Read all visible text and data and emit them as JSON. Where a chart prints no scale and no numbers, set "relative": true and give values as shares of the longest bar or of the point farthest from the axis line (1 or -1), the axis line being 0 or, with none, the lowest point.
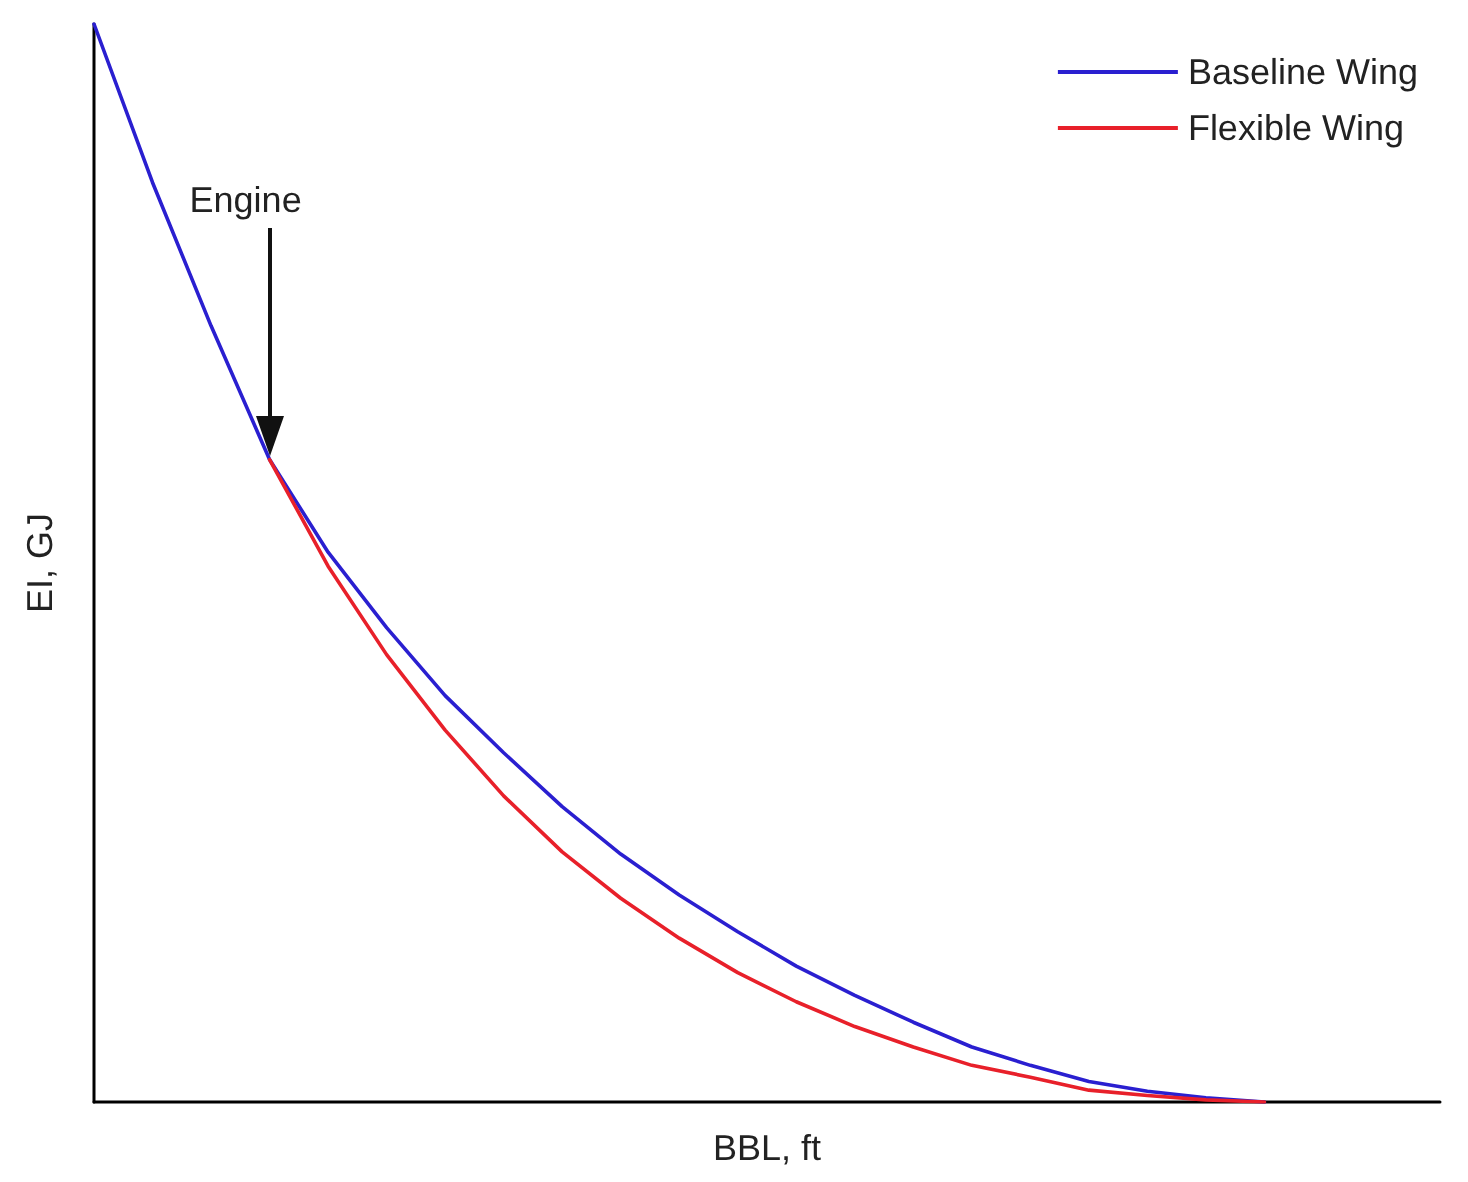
{
  "chart_data": {
    "type": "line",
    "relative": true,
    "xlabel": "BBL, ft",
    "ylabel": "EI, GJ",
    "categories": [
      null,
      null,
      null,
      null,
      null,
      null,
      null,
      null,
      null,
      null,
      null,
      null,
      null,
      null,
      null,
      null,
      null,
      null,
      null,
      null,
      null,
      null,
      null,
      null
    ],
    "series": [
      {
        "name": "Baseline Wing",
        "color": "#2a1fd0",
        "values": [
          1,
          0.853,
          0.72,
          0.596,
          0.51,
          0.44,
          0.377,
          0.324,
          0.274,
          0.23,
          0.192,
          0.158,
          0.126,
          0.099,
          0.074,
          0.051,
          0.034,
          0.019,
          0.01,
          0.004,
          0,
          null,
          null,
          null
        ]
      },
      {
        "name": "Flexible Wing",
        "color": "#e8202a",
        "values": [
          null,
          null,
          null,
          0.596,
          0.497,
          0.415,
          0.345,
          0.284,
          0.232,
          0.189,
          0.152,
          0.12,
          0.093,
          0.07,
          0.051,
          0.034,
          0.023,
          0.011,
          0.006,
          0.002,
          0,
          null,
          null,
          null
        ]
      }
    ],
    "annotations": [
      "Engine"
    ],
    "legend": "top right",
    "grid": false,
    "marker": "none",
    "line_style": "solid"
  }
}
